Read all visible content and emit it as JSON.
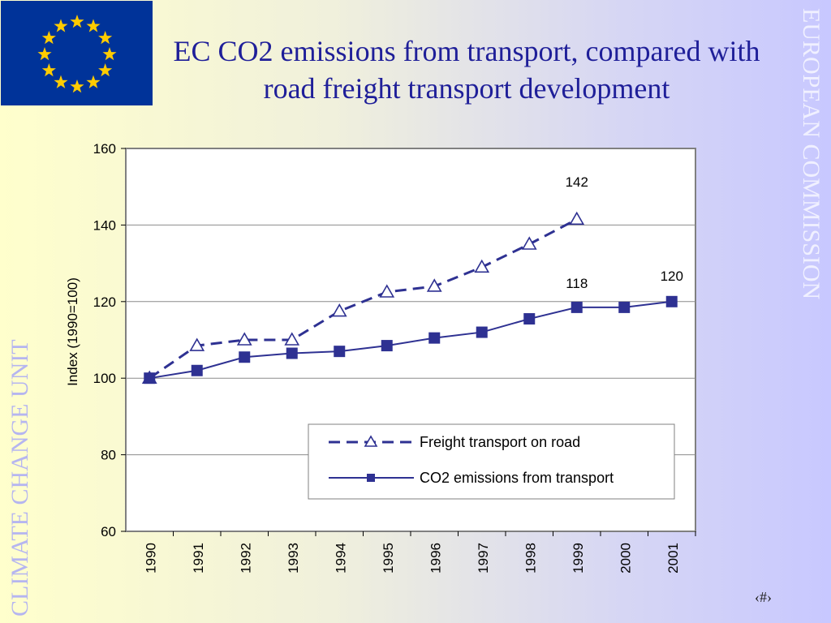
{
  "slide": {
    "title": "EC CO2 emissions from transport, compared with road freight transport development",
    "side_left": "CLIMATE CHANGE UNIT",
    "side_right": "EUROPEAN COMMISSION",
    "page_number": "‹#›"
  },
  "colors": {
    "flag_blue": "#003399",
    "star_yellow": "#ffcc00",
    "series": "#2e3192"
  },
  "chart_data": {
    "type": "line",
    "title": "",
    "xlabel": "",
    "ylabel": "Index (1990=100)",
    "ylim": [
      60,
      160
    ],
    "yticks": [
      "60",
      "80",
      "100",
      "120",
      "140",
      "160"
    ],
    "categories": [
      "1990",
      "1991",
      "1992",
      "1993",
      "1994",
      "1995",
      "1996",
      "1997",
      "1998",
      "1999",
      "2000",
      "2001"
    ],
    "grid": "horizontal",
    "legend_position": "bottom-right",
    "series": [
      {
        "name": "Freight transport on road",
        "style": "dashed",
        "marker": "triangle-open",
        "values": [
          100,
          108.5,
          110,
          110,
          117.5,
          122.5,
          124,
          129,
          135,
          141.5,
          null,
          null
        ]
      },
      {
        "name": "CO2 emissions from transport",
        "style": "solid",
        "marker": "square-filled",
        "values": [
          100,
          102,
          105.5,
          106.5,
          107,
          108.5,
          110.5,
          112,
          115.5,
          118.5,
          118.5,
          120
        ]
      }
    ],
    "annotations": [
      {
        "text": "142",
        "x": "1999",
        "y": 142
      },
      {
        "text": "118",
        "x": "1999",
        "y": 118
      },
      {
        "text": "120",
        "x": "2001",
        "y": 120
      }
    ]
  }
}
